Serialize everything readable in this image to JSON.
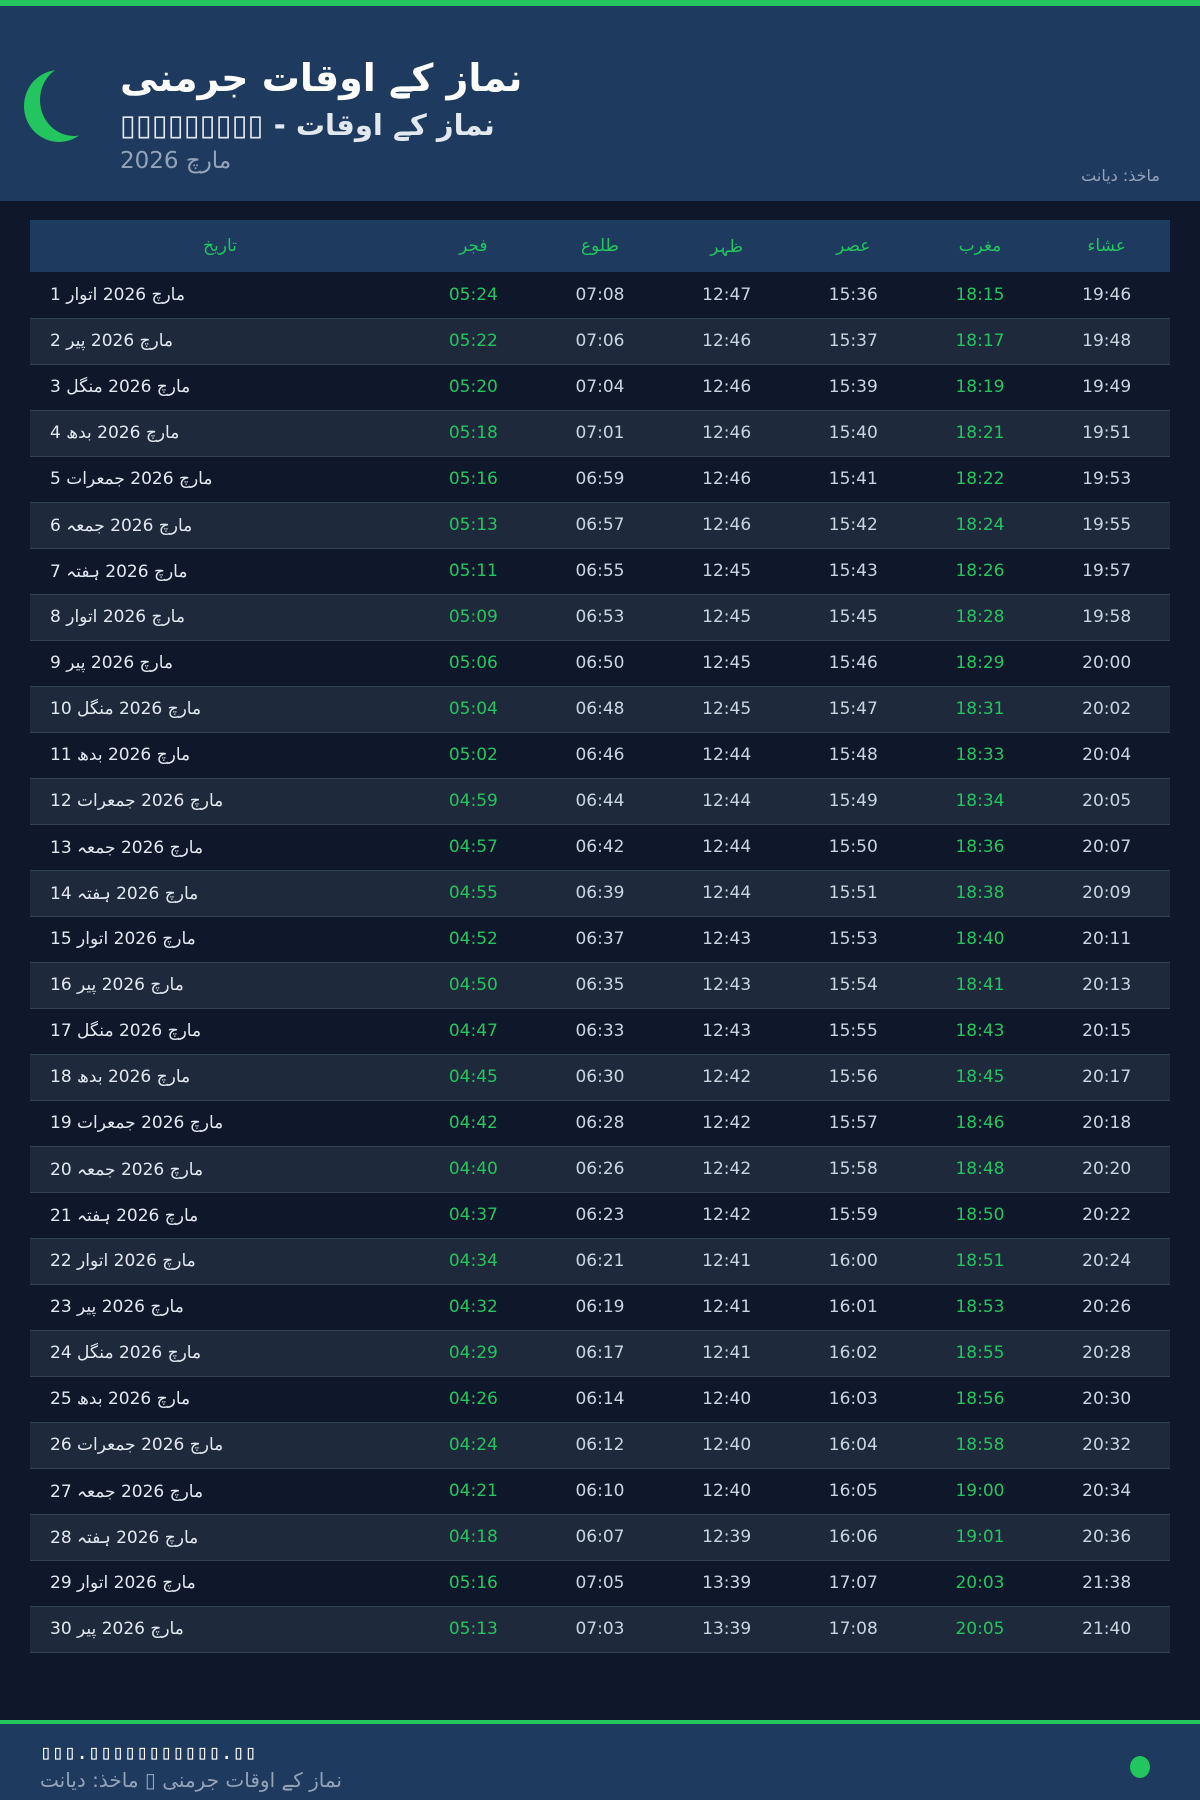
{
  "header": {
    "title": "نماز کے اوقات جرمنی",
    "subtitle": "▯▯▯▯▯▯▯▯▯ - نماز کے اوقات",
    "month": "مارچ 2026",
    "source": "ماخذ: دیانت"
  },
  "columns": [
    "تاریخ",
    "فجر",
    "طلوع",
    "ظہر",
    "عصر",
    "مغرب",
    "عشاء"
  ],
  "rows": [
    [
      "1 مارچ 2026 اتوار",
      "05:24",
      "07:08",
      "12:47",
      "15:36",
      "18:15",
      "19:46"
    ],
    [
      "2 مارچ 2026 پیر",
      "05:22",
      "07:06",
      "12:46",
      "15:37",
      "18:17",
      "19:48"
    ],
    [
      "3 مارچ 2026 منگل",
      "05:20",
      "07:04",
      "12:46",
      "15:39",
      "18:19",
      "19:49"
    ],
    [
      "4 مارچ 2026 بدھ",
      "05:18",
      "07:01",
      "12:46",
      "15:40",
      "18:21",
      "19:51"
    ],
    [
      "5 مارچ 2026 جمعرات",
      "05:16",
      "06:59",
      "12:46",
      "15:41",
      "18:22",
      "19:53"
    ],
    [
      "6 مارچ 2026 جمعہ",
      "05:13",
      "06:57",
      "12:46",
      "15:42",
      "18:24",
      "19:55"
    ],
    [
      "7 مارچ 2026 ہفتہ",
      "05:11",
      "06:55",
      "12:45",
      "15:43",
      "18:26",
      "19:57"
    ],
    [
      "8 مارچ 2026 اتوار",
      "05:09",
      "06:53",
      "12:45",
      "15:45",
      "18:28",
      "19:58"
    ],
    [
      "9 مارچ 2026 پیر",
      "05:06",
      "06:50",
      "12:45",
      "15:46",
      "18:29",
      "20:00"
    ],
    [
      "10 مارچ 2026 منگل",
      "05:04",
      "06:48",
      "12:45",
      "15:47",
      "18:31",
      "20:02"
    ],
    [
      "11 مارچ 2026 بدھ",
      "05:02",
      "06:46",
      "12:44",
      "15:48",
      "18:33",
      "20:04"
    ],
    [
      "12 مارچ 2026 جمعرات",
      "04:59",
      "06:44",
      "12:44",
      "15:49",
      "18:34",
      "20:05"
    ],
    [
      "13 مارچ 2026 جمعہ",
      "04:57",
      "06:42",
      "12:44",
      "15:50",
      "18:36",
      "20:07"
    ],
    [
      "14 مارچ 2026 ہفتہ",
      "04:55",
      "06:39",
      "12:44",
      "15:51",
      "18:38",
      "20:09"
    ],
    [
      "15 مارچ 2026 اتوار",
      "04:52",
      "06:37",
      "12:43",
      "15:53",
      "18:40",
      "20:11"
    ],
    [
      "16 مارچ 2026 پیر",
      "04:50",
      "06:35",
      "12:43",
      "15:54",
      "18:41",
      "20:13"
    ],
    [
      "17 مارچ 2026 منگل",
      "04:47",
      "06:33",
      "12:43",
      "15:55",
      "18:43",
      "20:15"
    ],
    [
      "18 مارچ 2026 بدھ",
      "04:45",
      "06:30",
      "12:42",
      "15:56",
      "18:45",
      "20:17"
    ],
    [
      "19 مارچ 2026 جمعرات",
      "04:42",
      "06:28",
      "12:42",
      "15:57",
      "18:46",
      "20:18"
    ],
    [
      "20 مارچ 2026 جمعہ",
      "04:40",
      "06:26",
      "12:42",
      "15:58",
      "18:48",
      "20:20"
    ],
    [
      "21 مارچ 2026 ہفتہ",
      "04:37",
      "06:23",
      "12:42",
      "15:59",
      "18:50",
      "20:22"
    ],
    [
      "22 مارچ 2026 اتوار",
      "04:34",
      "06:21",
      "12:41",
      "16:00",
      "18:51",
      "20:24"
    ],
    [
      "23 مارچ 2026 پیر",
      "04:32",
      "06:19",
      "12:41",
      "16:01",
      "18:53",
      "20:26"
    ],
    [
      "24 مارچ 2026 منگل",
      "04:29",
      "06:17",
      "12:41",
      "16:02",
      "18:55",
      "20:28"
    ],
    [
      "25 مارچ 2026 بدھ",
      "04:26",
      "06:14",
      "12:40",
      "16:03",
      "18:56",
      "20:30"
    ],
    [
      "26 مارچ 2026 جمعرات",
      "04:24",
      "06:12",
      "12:40",
      "16:04",
      "18:58",
      "20:32"
    ],
    [
      "27 مارچ 2026 جمعہ",
      "04:21",
      "06:10",
      "12:40",
      "16:05",
      "19:00",
      "20:34"
    ],
    [
      "28 مارچ 2026 ہفتہ",
      "04:18",
      "06:07",
      "12:39",
      "16:06",
      "19:01",
      "20:36"
    ],
    [
      "29 مارچ 2026 اتوار",
      "05:16",
      "07:05",
      "13:39",
      "17:07",
      "20:03",
      "21:38"
    ],
    [
      "30 مارچ 2026 پیر",
      "05:13",
      "07:03",
      "13:39",
      "17:08",
      "20:05",
      "21:40"
    ]
  ],
  "footer": {
    "url": "▯▯▯.▯▯▯▯▯▯▯▯▯▯▯.▯▯",
    "text": "نماز کے اوقات جرمنی ▯ ماخذ: دیانت"
  },
  "colors": {
    "accent": "#22c55e",
    "header_bg": "#1e3a5f",
    "page_bg": "#0f172a",
    "row_alt": "#1e293b"
  },
  "icons": {
    "logo": "crescent-moon-icon",
    "footer": "green-dot-icon"
  }
}
